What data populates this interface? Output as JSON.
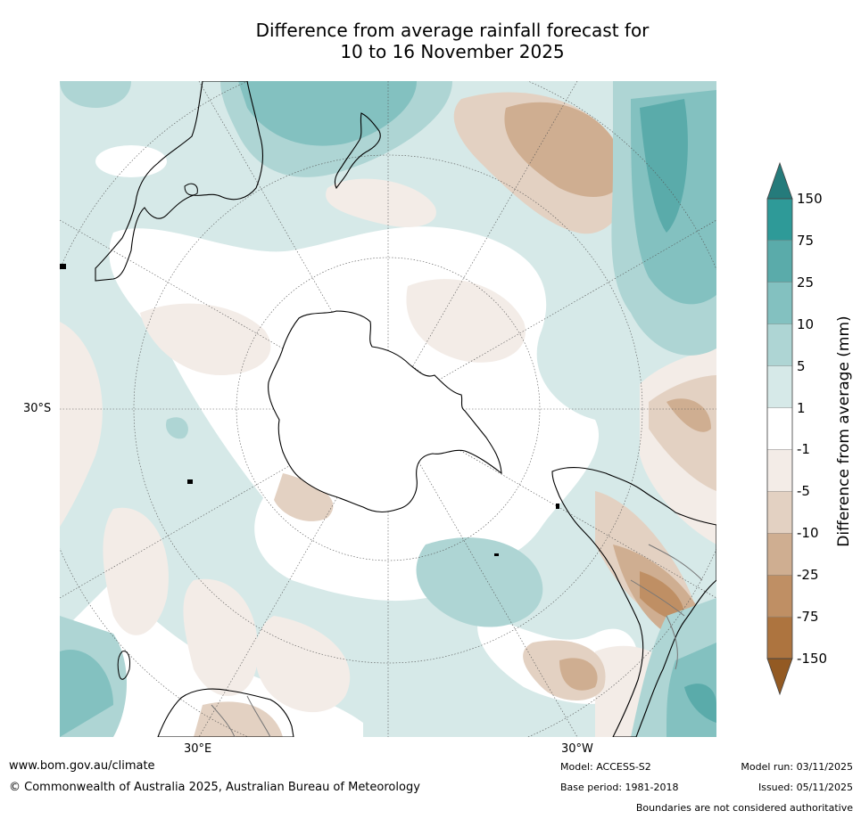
{
  "title": {
    "line1": "Difference from average rainfall forecast for",
    "line2": "10 to 16 November 2025"
  },
  "map": {
    "projection": "south polar stereographic",
    "lat_label": "30°S",
    "lon_labels": {
      "east": "30°E",
      "west": "30°W"
    },
    "landmasses": [
      "Antarctica",
      "Australia",
      "New Zealand",
      "South America",
      "Africa"
    ]
  },
  "legend": {
    "title": "Difference from average (mm)",
    "ticks": [
      "150",
      "75",
      "25",
      "10",
      "5",
      "1",
      "-1",
      "-5",
      "-10",
      "-25",
      "-75",
      "-150"
    ],
    "colors": {
      "wet_extreme": "#257b7b",
      "wet_150": "#2e9a98",
      "wet_75": "#5aabaa",
      "wet_25": "#83c1c0",
      "wet_10": "#aed5d4",
      "wet_5": "#d6e9e8",
      "neutral": "#ffffff",
      "dry_1": "#f3ece7",
      "dry_5": "#e3d1c2",
      "dry_10": "#cfae91",
      "dry_25": "#bf8f64",
      "dry_75": "#ad743f",
      "dry_extreme": "#935a23"
    }
  },
  "footer": {
    "website": "www.bom.gov.au/climate",
    "copyright": "© Commonwealth of Australia 2025, Australian Bureau of Meteorology",
    "model": "Model: ACCESS-S2",
    "base_period": "Base period: 1981-2018",
    "model_run": "Model run: 03/11/2025",
    "issued": "Issued: 05/11/2025",
    "disclaimer": "Boundaries are not considered authoritative"
  }
}
